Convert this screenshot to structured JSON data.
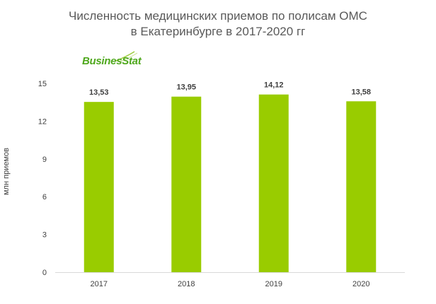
{
  "title_line1": "Численность медицинских приемов по полисам ОМС",
  "title_line2": "в Екатеринбурге в 2017-2020 гг",
  "logo_text": "BusinesStat",
  "colors": {
    "bar": "#99cc00",
    "logo": "#4fa81d",
    "axis": "#d9d9d9",
    "text": "#404040"
  },
  "chart_data": {
    "type": "bar",
    "title": "Численность медицинских приемов по полисам ОМС в Екатеринбурге в 2017-2020 гг",
    "categories": [
      "2017",
      "2018",
      "2019",
      "2020"
    ],
    "values": [
      13.53,
      13.95,
      14.12,
      13.58
    ],
    "value_labels": [
      "13,53",
      "13,95",
      "14,12",
      "13,58"
    ],
    "xlabel": "",
    "ylabel": "млн приемов",
    "ylim": [
      0,
      15
    ],
    "yticks": [
      0,
      3,
      6,
      9,
      12,
      15
    ],
    "grid": false,
    "legend": "none"
  }
}
